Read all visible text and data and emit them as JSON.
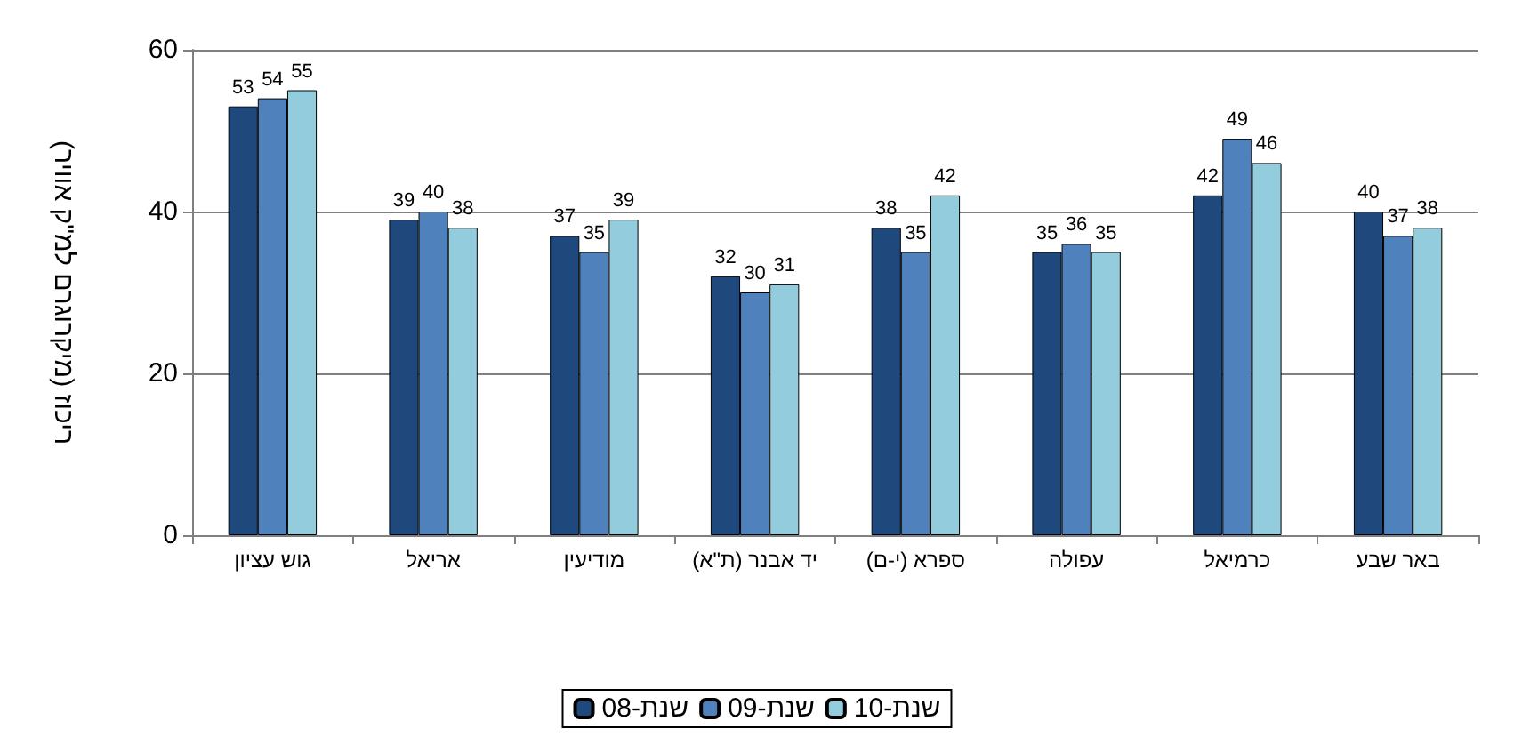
{
  "chart_data": {
    "type": "bar",
    "ylabel": "ריכוז (מיקרוגרם למ\"ק אוויר)",
    "categories": [
      "גוש עציון",
      "אריאל",
      "מודיעין",
      "יד אבנר (ת\"א)",
      "ספרא (י-ם)",
      "עפולה",
      "כרמיאל",
      "באר שבע"
    ],
    "series": [
      {
        "name": "שנת-08",
        "color": "#1f497d",
        "values": [
          53,
          39,
          37,
          32,
          38,
          35,
          42,
          40
        ]
      },
      {
        "name": "שנת-09",
        "color": "#4f81bd",
        "values": [
          54,
          40,
          35,
          30,
          35,
          36,
          49,
          37
        ]
      },
      {
        "name": "שנת-10",
        "color": "#93cddd",
        "values": [
          55,
          38,
          39,
          31,
          42,
          35,
          46,
          38
        ]
      }
    ],
    "ylim": [
      0,
      60
    ],
    "yticks": [
      0,
      20,
      40,
      60
    ],
    "grid": "y",
    "legend": "bottom",
    "data_labels": true
  }
}
